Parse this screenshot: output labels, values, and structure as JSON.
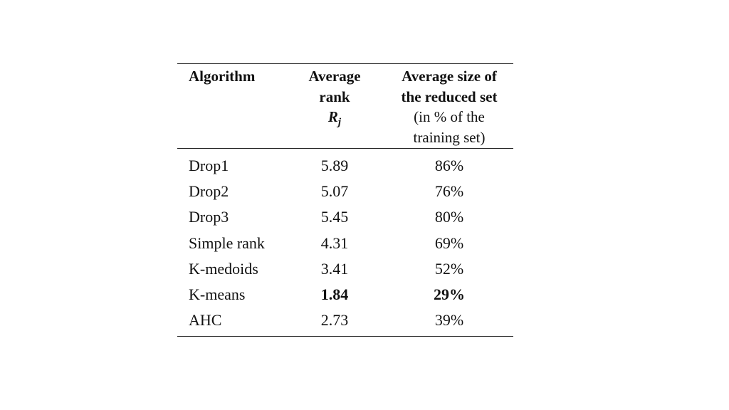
{
  "table": {
    "headers": {
      "algorithm": "Algorithm",
      "rank_line1": "Average",
      "rank_line2": "rank",
      "rank_symbol": "R",
      "rank_subscript": "j",
      "size_line1": "Average size of",
      "size_line2": "the reduced set",
      "size_line3": "(in % of the",
      "size_line4": "training set)"
    },
    "rows": [
      {
        "algorithm": "Drop1",
        "rank": "5.89",
        "size": "86%",
        "bold": false
      },
      {
        "algorithm": "Drop2",
        "rank": "5.07",
        "size": "76%",
        "bold": false
      },
      {
        "algorithm": "Drop3",
        "rank": "5.45",
        "size": "80%",
        "bold": false
      },
      {
        "algorithm": "Simple rank",
        "rank": "4.31",
        "size": "69%",
        "bold": false
      },
      {
        "algorithm": "K-medoids",
        "rank": "3.41",
        "size": "52%",
        "bold": false
      },
      {
        "algorithm": "K-means",
        "rank": "1.84",
        "size": "29%",
        "bold": true
      },
      {
        "algorithm": "AHC",
        "rank": "2.73",
        "size": "39%",
        "bold": false
      }
    ]
  }
}
